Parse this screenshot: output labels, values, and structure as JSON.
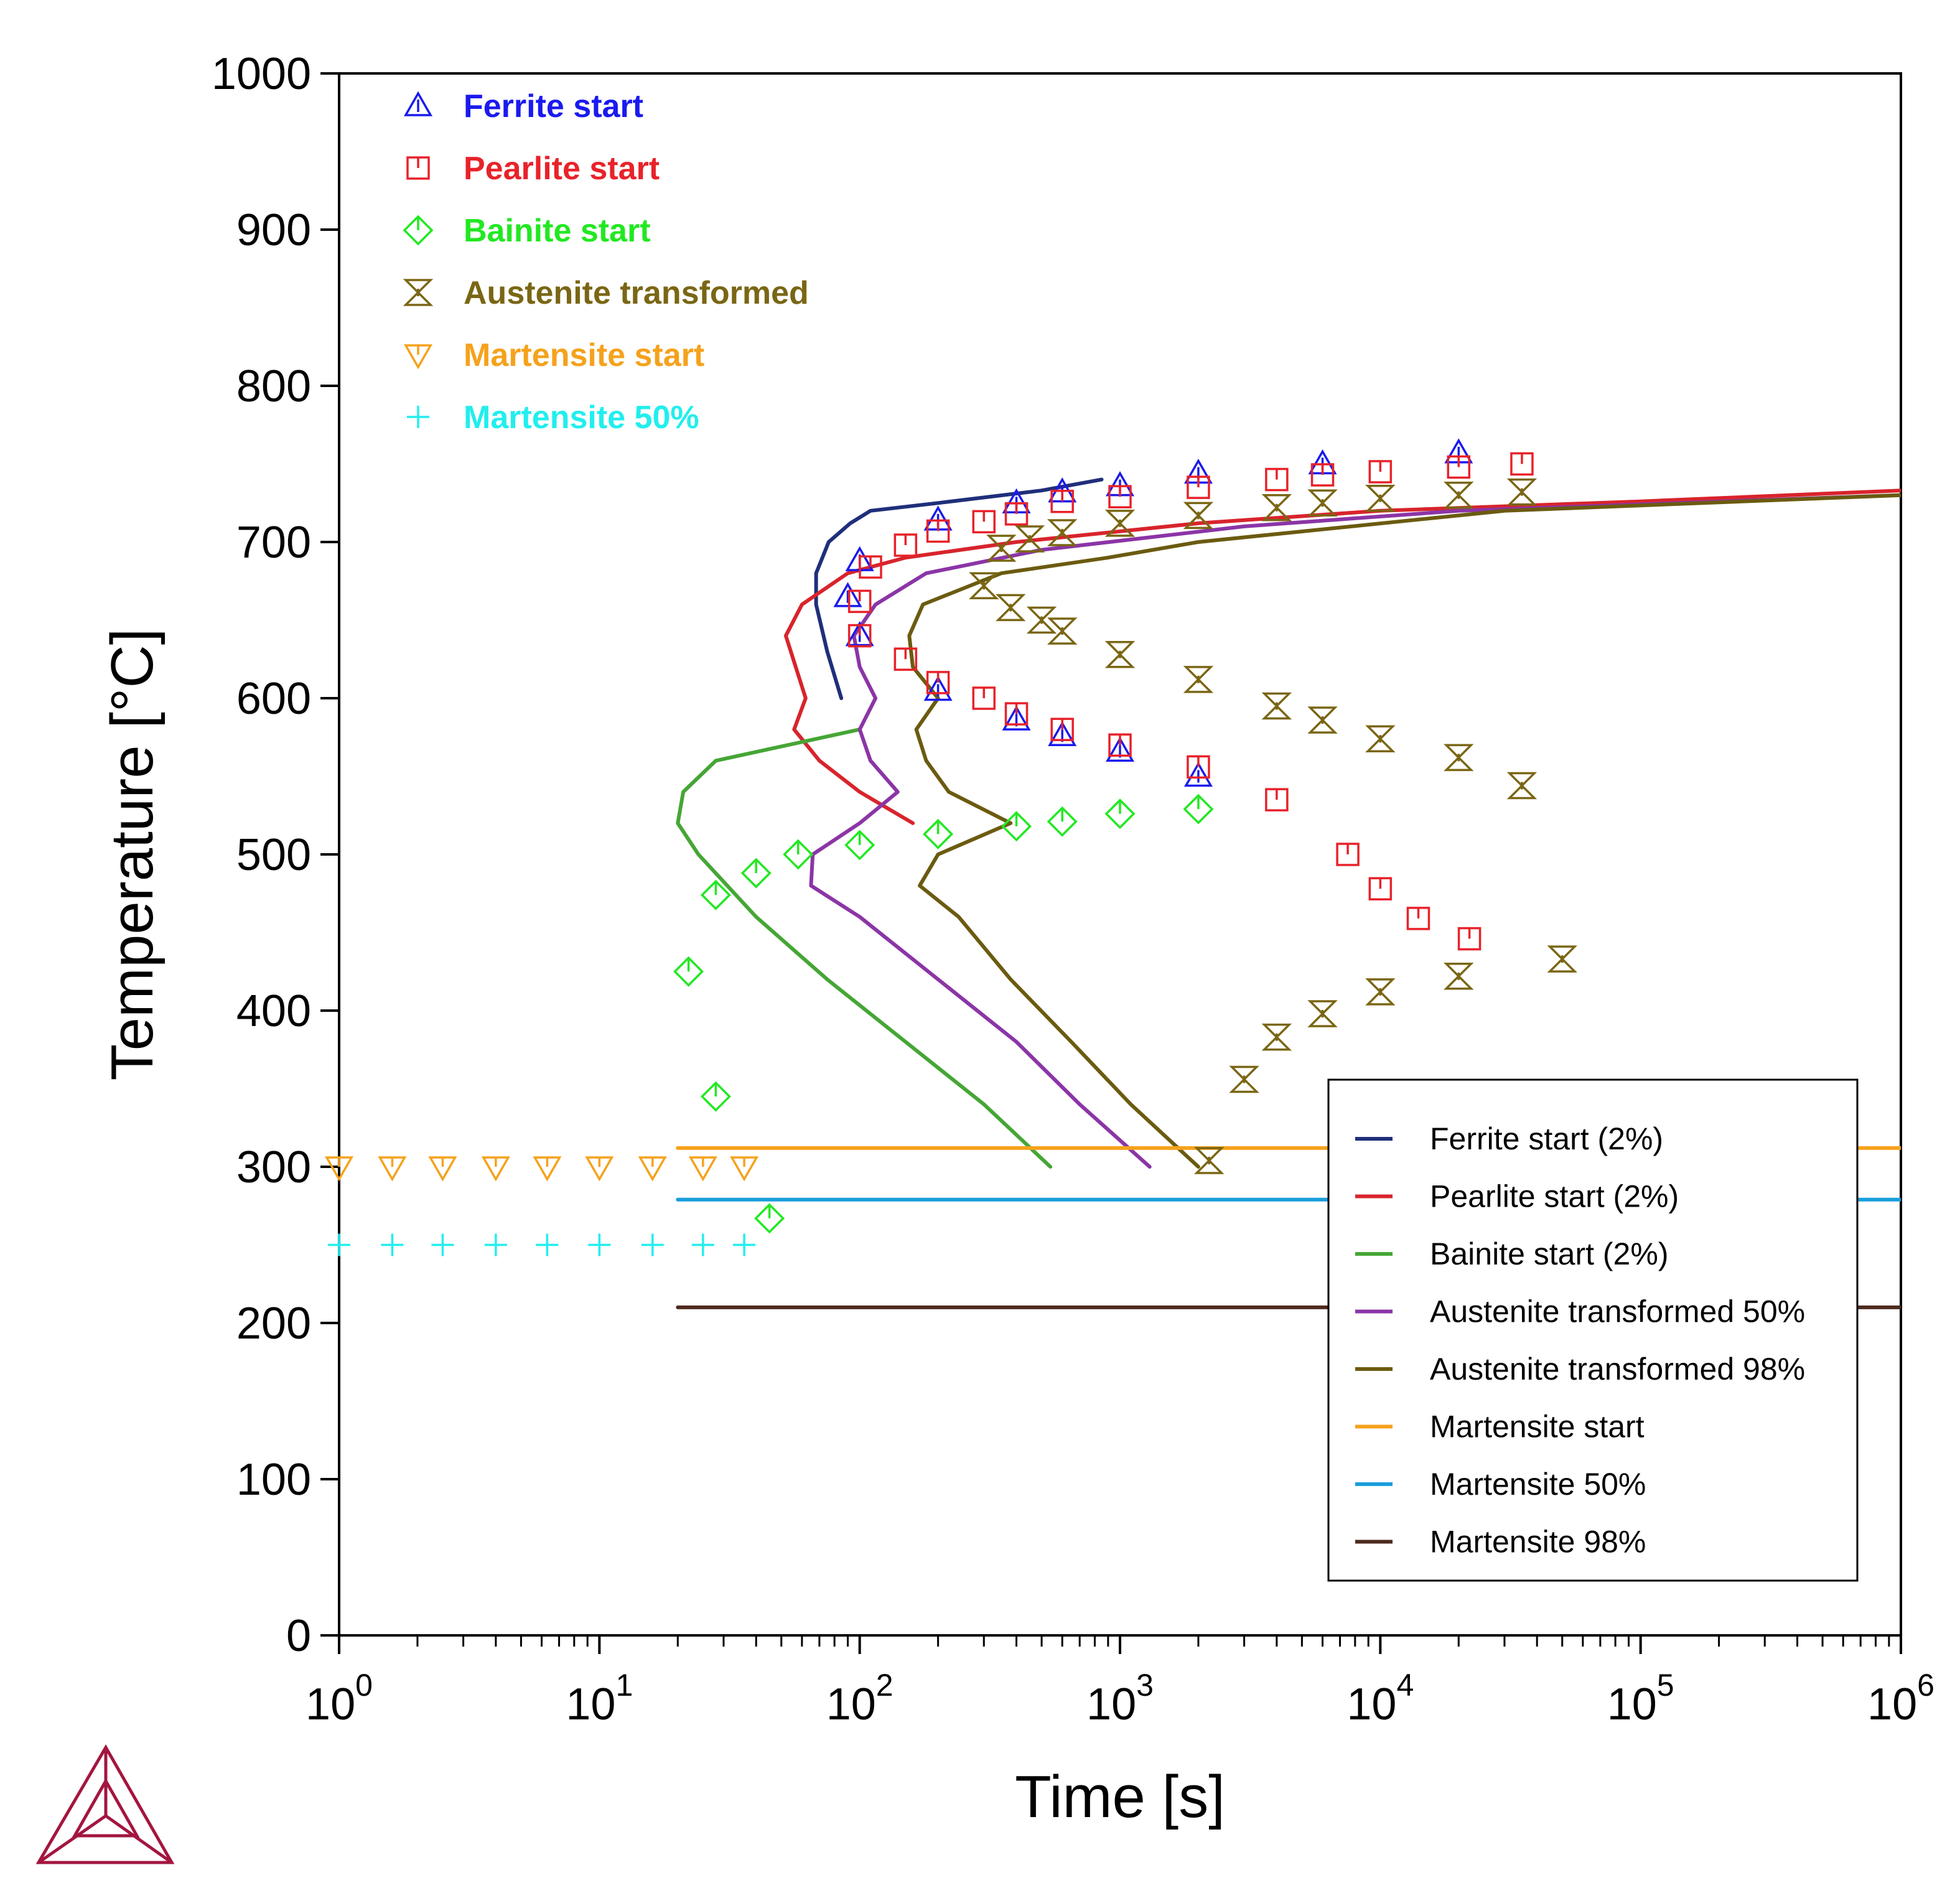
{
  "chart_data": {
    "type": "line",
    "xlabel": "Time [s]",
    "ylabel": "Temperature [°C]",
    "xscale": "log",
    "xlim": [
      1,
      1000000
    ],
    "ylim": [
      0,
      1000
    ],
    "x_ticks": [
      1,
      10,
      100,
      1000,
      10000,
      100000,
      1000000
    ],
    "x_tick_labels": [
      {
        "base": "10",
        "exp": "0"
      },
      {
        "base": "10",
        "exp": "1"
      },
      {
        "base": "10",
        "exp": "2"
      },
      {
        "base": "10",
        "exp": "3"
      },
      {
        "base": "10",
        "exp": "4"
      },
      {
        "base": "10",
        "exp": "5"
      },
      {
        "base": "10",
        "exp": "6"
      }
    ],
    "y_ticks": [
      0,
      100,
      200,
      300,
      400,
      500,
      600,
      700,
      800,
      900,
      1000
    ],
    "y_tick_labels": [
      "0",
      "100",
      "200",
      "300",
      "400",
      "500",
      "600",
      "700",
      "800",
      "900",
      "1000"
    ],
    "grid": false,
    "line_legend_position": "right",
    "marker_legend_position": "top-left",
    "series": [
      {
        "name": "Ferrite start (2%)",
        "color": "#1f2f7a",
        "points": [
          [
            85,
            600
          ],
          [
            75,
            630
          ],
          [
            68,
            660
          ],
          [
            68,
            680
          ],
          [
            76,
            700
          ],
          [
            92,
            712
          ],
          [
            110,
            720
          ],
          [
            200,
            725
          ],
          [
            500,
            733
          ],
          [
            850,
            740
          ]
        ]
      },
      {
        "name": "Pearlite start (2%)",
        "color": "#d8242c",
        "points": [
          [
            160,
            520
          ],
          [
            100,
            540
          ],
          [
            70,
            560
          ],
          [
            56,
            580
          ],
          [
            62,
            600
          ],
          [
            52,
            640
          ],
          [
            60,
            660
          ],
          [
            90,
            680
          ],
          [
            150,
            690
          ],
          [
            400,
            700
          ],
          [
            2000,
            712
          ],
          [
            10000,
            720
          ],
          [
            100000,
            726
          ],
          [
            1000000,
            733
          ]
        ]
      },
      {
        "name": "Bainite start (2%)",
        "color": "#45a635",
        "points": [
          [
            540,
            300
          ],
          [
            300,
            340
          ],
          [
            150,
            380
          ],
          [
            75,
            420
          ],
          [
            40,
            460
          ],
          [
            24,
            500
          ],
          [
            20,
            520
          ],
          [
            21,
            540
          ],
          [
            28,
            560
          ],
          [
            100,
            580
          ]
        ]
      },
      {
        "name": "Austenite transformed 50%",
        "color": "#8b35a6",
        "points": [
          [
            1300,
            300
          ],
          [
            700,
            340
          ],
          [
            400,
            380
          ],
          [
            200,
            420
          ],
          [
            100,
            460
          ],
          [
            65,
            480
          ],
          [
            66,
            500
          ],
          [
            100,
            520
          ],
          [
            140,
            540
          ],
          [
            110,
            560
          ],
          [
            100,
            580
          ],
          [
            115,
            600
          ],
          [
            100,
            620
          ],
          [
            95,
            640
          ],
          [
            115,
            660
          ],
          [
            180,
            680
          ],
          [
            500,
            695
          ],
          [
            3000,
            710
          ],
          [
            20000,
            720
          ],
          [
            1000000,
            730
          ]
        ]
      },
      {
        "name": "Austenite transformed 98%",
        "color": "#6b5b10",
        "points": [
          [
            2000,
            300
          ],
          [
            1100,
            340
          ],
          [
            650,
            380
          ],
          [
            380,
            420
          ],
          [
            240,
            460
          ],
          [
            170,
            480
          ],
          [
            200,
            500
          ],
          [
            380,
            520
          ],
          [
            220,
            540
          ],
          [
            180,
            560
          ],
          [
            165,
            580
          ],
          [
            200,
            600
          ],
          [
            160,
            620
          ],
          [
            155,
            640
          ],
          [
            175,
            660
          ],
          [
            350,
            680
          ],
          [
            900,
            690
          ],
          [
            2000,
            700
          ],
          [
            30000,
            720
          ],
          [
            1000000,
            730
          ]
        ]
      },
      {
        "name": "Martensite start",
        "color": "#f5a21c",
        "points": [
          [
            20,
            312
          ],
          [
            1000000,
            312
          ]
        ]
      },
      {
        "name": "Martensite 50%",
        "color": "#1a9edb",
        "points": [
          [
            20,
            279
          ],
          [
            1000000,
            279
          ]
        ]
      },
      {
        "name": "Martensite 98%",
        "color": "#4e2a1e",
        "points": [
          [
            20,
            210
          ],
          [
            1000000,
            210
          ]
        ]
      }
    ],
    "marker_series": [
      {
        "name": "Ferrite start",
        "color": "#1a1aee",
        "marker": "triangle-up",
        "points": [
          [
            90,
            665
          ],
          [
            100,
            640
          ],
          [
            100,
            688
          ],
          [
            200,
            605
          ],
          [
            200,
            714
          ],
          [
            400,
            586
          ],
          [
            400,
            725
          ],
          [
            600,
            576
          ],
          [
            600,
            732
          ],
          [
            1000,
            566
          ],
          [
            1000,
            736
          ],
          [
            2000,
            550
          ],
          [
            2000,
            744
          ],
          [
            6000,
            750
          ],
          [
            20000,
            757
          ]
        ]
      },
      {
        "name": "Pearlite start",
        "color": "#e8222a",
        "marker": "square",
        "points": [
          [
            100,
            662
          ],
          [
            100,
            640
          ],
          [
            110,
            684
          ],
          [
            150,
            625
          ],
          [
            150,
            698
          ],
          [
            200,
            610
          ],
          [
            200,
            707
          ],
          [
            300,
            600
          ],
          [
            300,
            713
          ],
          [
            400,
            590
          ],
          [
            400,
            718
          ],
          [
            600,
            580
          ],
          [
            600,
            726
          ],
          [
            1000,
            570
          ],
          [
            1000,
            729
          ],
          [
            2000,
            556
          ],
          [
            2000,
            735
          ],
          [
            4000,
            535
          ],
          [
            4000,
            740
          ],
          [
            6000,
            743
          ],
          [
            7500,
            500
          ],
          [
            10000,
            478
          ],
          [
            10000,
            745
          ],
          [
            14000,
            459
          ],
          [
            20000,
            748
          ],
          [
            22000,
            446
          ],
          [
            35000,
            750
          ]
        ]
      },
      {
        "name": "Bainite start",
        "color": "#22e822",
        "marker": "diamond",
        "points": [
          [
            22,
            425
          ],
          [
            28,
            474
          ],
          [
            28,
            345
          ],
          [
            40,
            488
          ],
          [
            45,
            267
          ],
          [
            58,
            500
          ],
          [
            100,
            506
          ],
          [
            200,
            513
          ],
          [
            400,
            518
          ],
          [
            600,
            521
          ],
          [
            1000,
            526
          ],
          [
            2000,
            529
          ]
        ]
      },
      {
        "name": "Austenite transformed",
        "color": "#7a6614",
        "marker": "hourglass",
        "points": [
          [
            300,
            672
          ],
          [
            350,
            696
          ],
          [
            380,
            658
          ],
          [
            450,
            702
          ],
          [
            500,
            650
          ],
          [
            600,
            706
          ],
          [
            600,
            643
          ],
          [
            1000,
            712
          ],
          [
            1000,
            628
          ],
          [
            2000,
            717
          ],
          [
            2000,
            612
          ],
          [
            4000,
            722
          ],
          [
            4000,
            595
          ],
          [
            6000,
            725
          ],
          [
            6000,
            586
          ],
          [
            10000,
            728
          ],
          [
            10000,
            574
          ],
          [
            20000,
            730
          ],
          [
            20000,
            562
          ],
          [
            35000,
            732
          ],
          [
            35000,
            544
          ],
          [
            2200,
            304
          ],
          [
            3000,
            356
          ],
          [
            4000,
            383
          ],
          [
            6000,
            398
          ],
          [
            10000,
            412
          ],
          [
            20000,
            422
          ],
          [
            50000,
            433
          ]
        ]
      },
      {
        "name": "Martensite start",
        "color": "#f5a21c",
        "marker": "triangle-down",
        "points": [
          [
            1,
            300
          ],
          [
            1.6,
            300
          ],
          [
            2.5,
            300
          ],
          [
            4,
            300
          ],
          [
            6.3,
            300
          ],
          [
            10,
            300
          ],
          [
            16,
            300
          ],
          [
            25,
            300
          ],
          [
            36,
            300
          ]
        ]
      },
      {
        "name": "Martensite 50%",
        "color": "#22eeee",
        "marker": "plus",
        "points": [
          [
            1,
            250
          ],
          [
            1.6,
            250
          ],
          [
            2.5,
            250
          ],
          [
            4,
            250
          ],
          [
            6.3,
            250
          ],
          [
            10,
            250
          ],
          [
            16,
            250
          ],
          [
            25,
            250
          ],
          [
            36,
            250
          ]
        ]
      }
    ]
  }
}
